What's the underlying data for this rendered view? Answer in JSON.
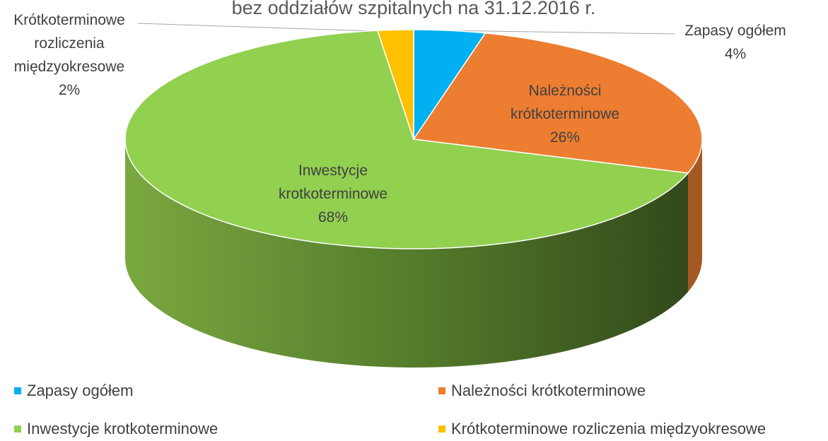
{
  "chart_data": {
    "type": "pie3d",
    "title": "bez oddziałów szpitalnych na 31.12.2016 r.",
    "categories": [
      "Zapasy ogółem",
      "Należności krótkoterminowe",
      "Inwestycje krotkoterminowe",
      "Krótkoterminowe rozliczenia międzyokresowe"
    ],
    "values": [
      4,
      26,
      68,
      2
    ],
    "value_labels": [
      "4%",
      "26%",
      "68%",
      "2%"
    ],
    "colors": [
      "#00b0f0",
      "#ed7d31",
      "#92d050",
      "#ffc000"
    ],
    "legend": "bottom"
  }
}
